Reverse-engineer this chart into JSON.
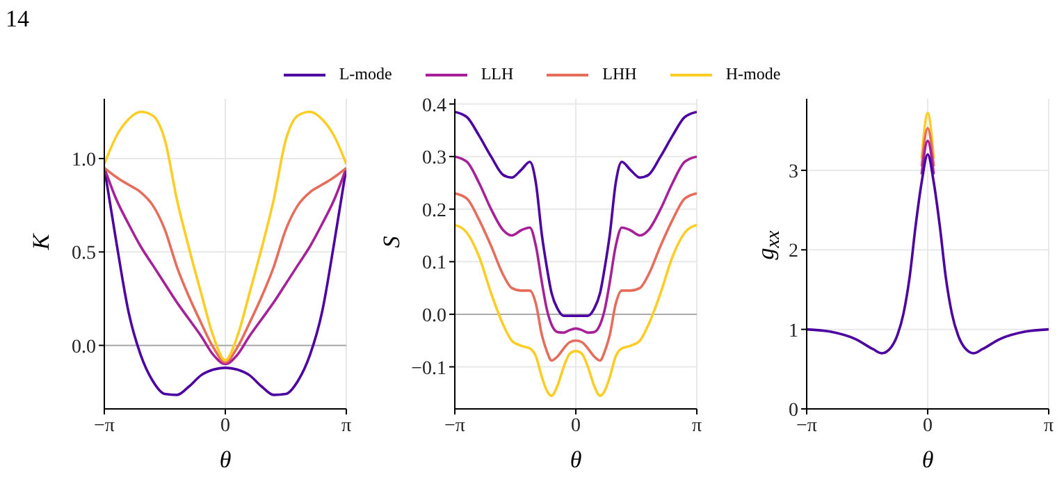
{
  "chart_data": [
    {
      "type": "line",
      "ylabel": "K",
      "xlabel": "θ",
      "annotations": [
        "14"
      ],
      "legend": "top",
      "grid": true,
      "x": [
        -3.1416,
        -2.8274,
        -2.5133,
        -2.1991,
        -1.885,
        -1.5708,
        -1.2566,
        -0.9425,
        -0.6283,
        -0.3142,
        0,
        0.3142,
        0.6283,
        0.9425,
        1.2566,
        1.5708,
        1.885,
        2.1991,
        2.5133,
        2.8274,
        3.1416
      ],
      "xlim": [
        -3.1416,
        3.1416
      ],
      "xticks": [
        {
          "value": -3.1416,
          "label": "−π"
        },
        {
          "value": 0,
          "label": "0"
        },
        {
          "value": 3.1416,
          "label": "π"
        }
      ],
      "ylim": [
        -0.34,
        1.32
      ],
      "yticks": [
        {
          "value": 0,
          "label": "0.0"
        },
        {
          "value": 0.5,
          "label": "0.5"
        },
        {
          "value": 1,
          "label": "1.0"
        }
      ],
      "ref_lines": [
        {
          "axis": "y",
          "value": 0,
          "color": "#aaaaaa"
        }
      ],
      "series": [
        {
          "name": "L-mode",
          "color": "#4c02a1",
          "values": [
            0.95,
            0.55,
            0.18,
            -0.05,
            -0.19,
            -0.26,
            -0.265,
            -0.22,
            -0.16,
            -0.13,
            -0.12,
            -0.13,
            -0.16,
            -0.22,
            -0.265,
            -0.26,
            -0.19,
            -0.05,
            0.18,
            0.55,
            0.95
          ]
        },
        {
          "name": "LLH",
          "color": "#a62098",
          "values": [
            0.95,
            0.78,
            0.65,
            0.53,
            0.43,
            0.33,
            0.23,
            0.14,
            0.05,
            -0.05,
            -0.1,
            -0.05,
            0.05,
            0.14,
            0.23,
            0.33,
            0.43,
            0.53,
            0.65,
            0.78,
            0.95
          ]
        },
        {
          "name": "LHH",
          "color": "#e66c5c",
          "values": [
            0.95,
            0.9,
            0.86,
            0.82,
            0.75,
            0.62,
            0.42,
            0.26,
            0.12,
            -0.01,
            -0.09,
            -0.01,
            0.12,
            0.26,
            0.42,
            0.62,
            0.75,
            0.82,
            0.86,
            0.9,
            0.95
          ]
        },
        {
          "name": "H-mode",
          "color": "#fcce25",
          "values": [
            0.97,
            1.12,
            1.21,
            1.25,
            1.23,
            1.1,
            0.78,
            0.52,
            0.28,
            0.05,
            -0.08,
            0.05,
            0.28,
            0.52,
            0.78,
            1.1,
            1.23,
            1.25,
            1.21,
            1.12,
            0.97
          ]
        }
      ]
    },
    {
      "type": "line",
      "ylabel": "S",
      "xlabel": "θ",
      "grid": true,
      "x": [
        -3.1416,
        -2.8274,
        -2.5133,
        -2.1991,
        -1.885,
        -1.665,
        -1.4137,
        -1.1938,
        -1.0367,
        -0.8796,
        -0.754,
        -0.6283,
        -0.4712,
        -0.3142,
        -0.1571,
        0,
        0.1571,
        0.3142,
        0.4712,
        0.6283,
        0.754,
        0.8796,
        1.0367,
        1.1938,
        1.4137,
        1.665,
        1.885,
        2.1991,
        2.5133,
        2.8274,
        3.1416
      ],
      "xlim": [
        -3.1416,
        3.1416
      ],
      "xticks": [
        {
          "value": -3.1416,
          "label": "−π"
        },
        {
          "value": 0,
          "label": "0"
        },
        {
          "value": 3.1416,
          "label": "π"
        }
      ],
      "ylim": [
        -0.18,
        0.41
      ],
      "yticks": [
        {
          "value": -0.1,
          "label": "−0.1"
        },
        {
          "value": 0,
          "label": "0.0"
        },
        {
          "value": 0.1,
          "label": "0.1"
        },
        {
          "value": 0.2,
          "label": "0.2"
        },
        {
          "value": 0.3,
          "label": "0.3"
        },
        {
          "value": 0.4,
          "label": "0.4"
        }
      ],
      "ref_lines": [
        {
          "axis": "y",
          "value": 0,
          "color": "#aaaaaa"
        }
      ],
      "series": [
        {
          "color": "#4c02a1",
          "values": [
            0.385,
            0.375,
            0.34,
            0.3,
            0.265,
            0.26,
            0.275,
            0.29,
            0.25,
            0.15,
            0.09,
            0.04,
            0.01,
            -0.003,
            -0.003,
            -0.003,
            -0.003,
            -0.003,
            0.01,
            0.04,
            0.09,
            0.15,
            0.25,
            0.29,
            0.275,
            0.26,
            0.265,
            0.3,
            0.34,
            0.375,
            0.385
          ]
        },
        {
          "color": "#a62098",
          "values": [
            0.3,
            0.29,
            0.25,
            0.2,
            0.16,
            0.15,
            0.16,
            0.165,
            0.13,
            0.06,
            0.01,
            -0.02,
            -0.034,
            -0.035,
            -0.03,
            -0.027,
            -0.03,
            -0.035,
            -0.034,
            -0.02,
            0.01,
            0.06,
            0.13,
            0.165,
            0.16,
            0.15,
            0.16,
            0.2,
            0.25,
            0.29,
            0.3
          ]
        },
        {
          "color": "#e66c5c",
          "values": [
            0.23,
            0.22,
            0.18,
            0.13,
            0.075,
            0.05,
            0.045,
            0.045,
            0.02,
            -0.04,
            -0.07,
            -0.088,
            -0.08,
            -0.065,
            -0.053,
            -0.05,
            -0.053,
            -0.065,
            -0.08,
            -0.088,
            -0.07,
            -0.04,
            0.02,
            0.045,
            0.045,
            0.05,
            0.075,
            0.13,
            0.18,
            0.22,
            0.23
          ]
        },
        {
          "color": "#fcce25",
          "values": [
            0.17,
            0.155,
            0.11,
            0.04,
            -0.02,
            -0.05,
            -0.06,
            -0.065,
            -0.08,
            -0.12,
            -0.145,
            -0.155,
            -0.135,
            -0.1,
            -0.075,
            -0.07,
            -0.075,
            -0.1,
            -0.135,
            -0.155,
            -0.145,
            -0.12,
            -0.08,
            -0.065,
            -0.06,
            -0.05,
            -0.02,
            0.04,
            0.11,
            0.155,
            0.17
          ]
        }
      ]
    },
    {
      "type": "line",
      "ylabel": "g$_{xx}$",
      "xlabel": "θ",
      "grid": true,
      "x": [
        -3.1416,
        -2.5133,
        -1.885,
        -1.4137,
        -1.1938,
        -0.9425,
        -0.7854,
        -0.6283,
        -0.4712,
        -0.3142,
        -0.1571,
        0,
        0.1571,
        0.3142,
        0.4712,
        0.6283,
        0.7854,
        0.9425,
        1.1938,
        1.4137,
        1.885,
        2.5133,
        3.1416
      ],
      "xlim": [
        -3.1416,
        3.1416
      ],
      "xticks": [
        {
          "value": -3.1416,
          "label": "−π"
        },
        {
          "value": 0,
          "label": "0"
        },
        {
          "value": 3.1416,
          "label": "π"
        }
      ],
      "ylim": [
        0,
        3.9
      ],
      "yticks": [
        0,
        1,
        2,
        3
      ],
      "series": [
        {
          "color": "#fcce25",
          "values": [
            null,
            null,
            null,
            null,
            null,
            null,
            null,
            null,
            null,
            null,
            3.15,
            3.72,
            3.15,
            null,
            null,
            null,
            null,
            null,
            null,
            null,
            null,
            null,
            null
          ]
        },
        {
          "color": "#e66c5c",
          "values": [
            null,
            null,
            null,
            null,
            null,
            null,
            null,
            null,
            null,
            null,
            3.05,
            3.53,
            3.05,
            null,
            null,
            null,
            null,
            null,
            null,
            null,
            null,
            null,
            null
          ]
        },
        {
          "color": "#a62098",
          "values": [
            null,
            null,
            null,
            null,
            null,
            null,
            null,
            null,
            null,
            null,
            2.95,
            3.37,
            2.95,
            null,
            null,
            null,
            null,
            null,
            null,
            null,
            null,
            null,
            null
          ]
        },
        {
          "color": "#4c02a1",
          "values": [
            1,
            0.97,
            0.88,
            0.75,
            0.7,
            0.78,
            0.93,
            1.2,
            1.65,
            2.3,
            2.85,
            3.2,
            2.85,
            2.3,
            1.65,
            1.2,
            0.93,
            0.78,
            0.7,
            0.75,
            0.88,
            0.97,
            1
          ]
        }
      ]
    }
  ]
}
